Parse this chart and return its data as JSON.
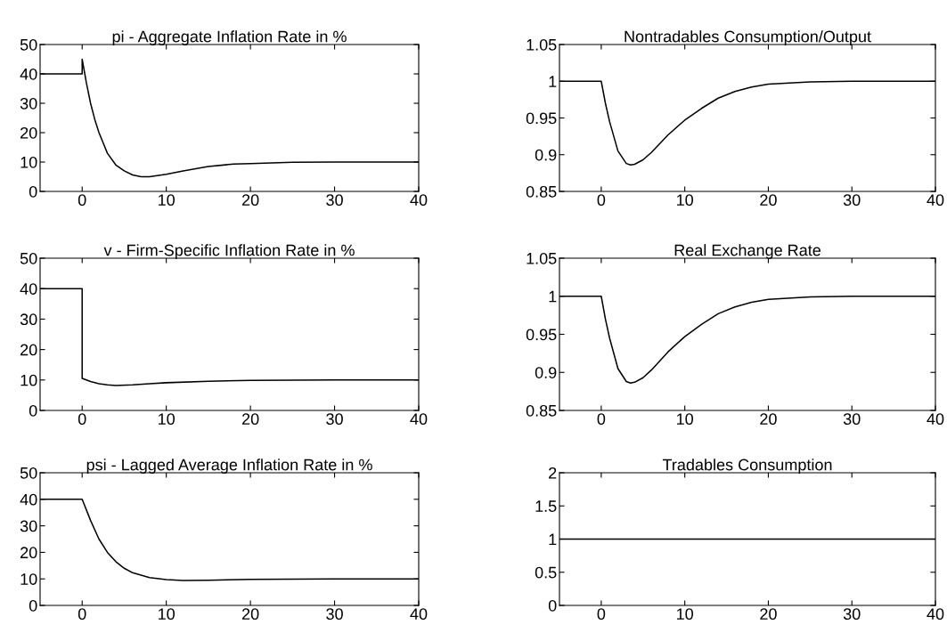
{
  "chart_data": [
    {
      "type": "line",
      "title": "pi - Aggregate Inflation Rate in %",
      "xlim": [
        -5,
        40
      ],
      "xticks": [
        0,
        10,
        20,
        30,
        40
      ],
      "ylim": [
        0,
        50
      ],
      "yticks": [
        0,
        10,
        20,
        30,
        40,
        50
      ],
      "series": [
        {
          "color": "#000000",
          "x": [
            -5,
            0,
            0,
            0.5,
            1,
            1.5,
            2,
            3,
            4,
            5,
            6,
            7,
            8,
            10,
            12,
            15,
            18,
            20,
            25,
            30,
            40
          ],
          "values": [
            40,
            40,
            45,
            37,
            30,
            24.5,
            20,
            13,
            9,
            7,
            5.6,
            5,
            5,
            5.8,
            7,
            8.5,
            9.3,
            9.5,
            9.9,
            10,
            10
          ]
        }
      ]
    },
    {
      "type": "line",
      "title": "Nontradables Consumption/Output",
      "xlim": [
        -5,
        40
      ],
      "xticks": [
        0,
        10,
        20,
        30,
        40
      ],
      "ylim": [
        0.85,
        1.05
      ],
      "yticks": [
        0.85,
        0.9,
        0.95,
        1,
        1.05
      ],
      "series": [
        {
          "color": "#000000",
          "x": [
            -5,
            0,
            0.5,
            1,
            2,
            3,
            3.5,
            4,
            5,
            6,
            8,
            10,
            12,
            14,
            16,
            18,
            20,
            25,
            30,
            40
          ],
          "values": [
            1,
            1,
            0.97,
            0.945,
            0.905,
            0.888,
            0.886,
            0.887,
            0.893,
            0.903,
            0.927,
            0.947,
            0.963,
            0.977,
            0.986,
            0.992,
            0.996,
            0.999,
            1,
            1
          ]
        }
      ]
    },
    {
      "type": "line",
      "title": "v - Firm-Specific Inflation Rate in %",
      "xlim": [
        -5,
        40
      ],
      "xticks": [
        0,
        10,
        20,
        30,
        40
      ],
      "ylim": [
        0,
        50
      ],
      "yticks": [
        0,
        10,
        20,
        30,
        40,
        50
      ],
      "series": [
        {
          "color": "#000000",
          "x": [
            -5,
            0,
            0,
            1,
            2,
            3,
            4,
            6,
            8,
            10,
            15,
            20,
            30,
            40
          ],
          "values": [
            40,
            40,
            10.5,
            9.5,
            8.8,
            8.4,
            8.2,
            8.4,
            8.8,
            9.1,
            9.6,
            9.9,
            10,
            10
          ]
        }
      ]
    },
    {
      "type": "line",
      "title": "Real Exchange Rate",
      "xlim": [
        -5,
        40
      ],
      "xticks": [
        0,
        10,
        20,
        30,
        40
      ],
      "ylim": [
        0.85,
        1.05
      ],
      "yticks": [
        0.85,
        0.9,
        0.95,
        1,
        1.05
      ],
      "series": [
        {
          "color": "#000000",
          "x": [
            -5,
            0,
            0.5,
            1,
            2,
            3,
            3.5,
            4,
            5,
            6,
            8,
            10,
            12,
            14,
            16,
            18,
            20,
            25,
            30,
            40
          ],
          "values": [
            1,
            1,
            0.97,
            0.945,
            0.905,
            0.888,
            0.886,
            0.887,
            0.893,
            0.903,
            0.927,
            0.947,
            0.963,
            0.977,
            0.986,
            0.992,
            0.996,
            0.999,
            1,
            1
          ]
        }
      ]
    },
    {
      "type": "line",
      "title": "psi - Lagged Average Inflation Rate in %",
      "xlim": [
        -5,
        40
      ],
      "xticks": [
        0,
        10,
        20,
        30,
        40
      ],
      "ylim": [
        0,
        50
      ],
      "yticks": [
        0,
        10,
        20,
        30,
        40,
        50
      ],
      "series": [
        {
          "color": "#000000",
          "x": [
            -5,
            0,
            1,
            2,
            3,
            4,
            5,
            6,
            8,
            10,
            12,
            15,
            20,
            30,
            40
          ],
          "values": [
            40,
            40,
            32,
            25,
            20,
            16.5,
            14,
            12.3,
            10.5,
            9.7,
            9.4,
            9.5,
            9.8,
            10,
            10
          ]
        }
      ]
    },
    {
      "type": "line",
      "title": "Tradables Consumption",
      "xlim": [
        -5,
        40
      ],
      "xticks": [
        0,
        10,
        20,
        30,
        40
      ],
      "ylim": [
        0,
        2
      ],
      "yticks": [
        0,
        0.5,
        1,
        1.5,
        2
      ],
      "series": [
        {
          "color": "#000000",
          "x": [
            -5,
            40
          ],
          "values": [
            1,
            1
          ]
        }
      ]
    }
  ]
}
